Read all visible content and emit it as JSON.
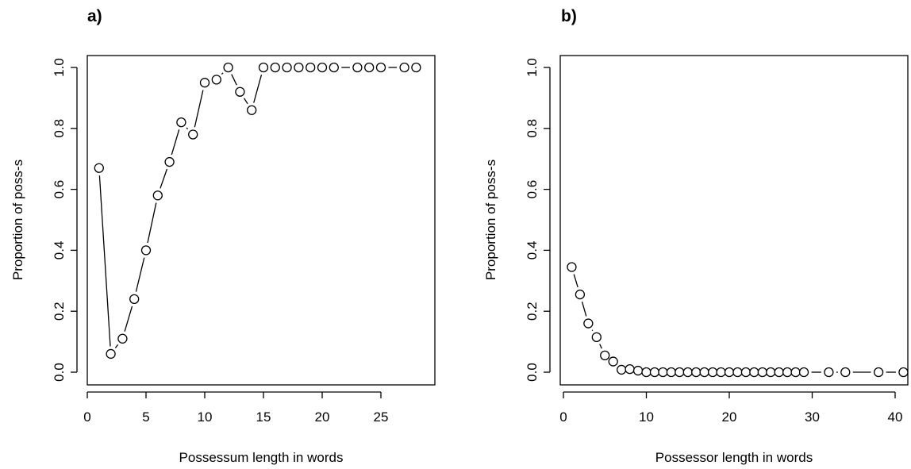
{
  "chart_data": [
    {
      "type": "line",
      "panel_label": "a)",
      "xlabel": "Possessum length in words",
      "ylabel": "Proportion of poss-s",
      "xlim": [
        0,
        29
      ],
      "ylim": [
        0,
        1
      ],
      "xticks": [
        "0",
        "5",
        "10",
        "15",
        "20",
        "25"
      ],
      "yticks": [
        "0.0",
        "0.2",
        "0.4",
        "0.6",
        "0.8",
        "1.0"
      ],
      "style": "both points and connecting lines (R type='b')",
      "series": [
        {
          "x": [
            1,
            2,
            3,
            4,
            5,
            6,
            7,
            8,
            9,
            10,
            11,
            12,
            13,
            14,
            15,
            16,
            17,
            18,
            19,
            20,
            21,
            23,
            24,
            25,
            27,
            28
          ],
          "y": [
            0.67,
            0.06,
            0.11,
            0.24,
            0.4,
            0.58,
            0.69,
            0.82,
            0.78,
            0.95,
            0.96,
            1.0,
            0.92,
            0.86,
            1.0,
            1.0,
            1.0,
            1.0,
            1.0,
            1.0,
            1.0,
            1.0,
            1.0,
            1.0,
            1.0,
            1.0
          ]
        }
      ]
    },
    {
      "type": "line",
      "panel_label": "b)",
      "xlabel": "Possessor length in words",
      "ylabel": "Proportion of poss-s",
      "xlim": [
        0,
        42
      ],
      "ylim": [
        0,
        1
      ],
      "xticks": [
        "0",
        "10",
        "20",
        "30",
        "40"
      ],
      "yticks": [
        "0.0",
        "0.2",
        "0.4",
        "0.6",
        "0.8",
        "1.0"
      ],
      "style": "both points and connecting lines (R type='b')",
      "series": [
        {
          "x": [
            1,
            2,
            3,
            4,
            5,
            6,
            7,
            8,
            9,
            10,
            11,
            12,
            13,
            14,
            15,
            16,
            17,
            18,
            19,
            20,
            21,
            22,
            23,
            24,
            25,
            26,
            27,
            28,
            29,
            32,
            34,
            38,
            41
          ],
          "y": [
            0.345,
            0.255,
            0.16,
            0.115,
            0.055,
            0.035,
            0.008,
            0.01,
            0.005,
            0.0,
            0.0,
            0.0,
            0.0,
            0.0,
            0.0,
            0.0,
            0.0,
            0.0,
            0.0,
            0.0,
            0.0,
            0.0,
            0.0,
            0.0,
            0.0,
            0.0,
            0.0,
            0.0,
            0.0,
            0.0,
            0.0,
            0.0,
            0.0
          ]
        }
      ]
    }
  ]
}
